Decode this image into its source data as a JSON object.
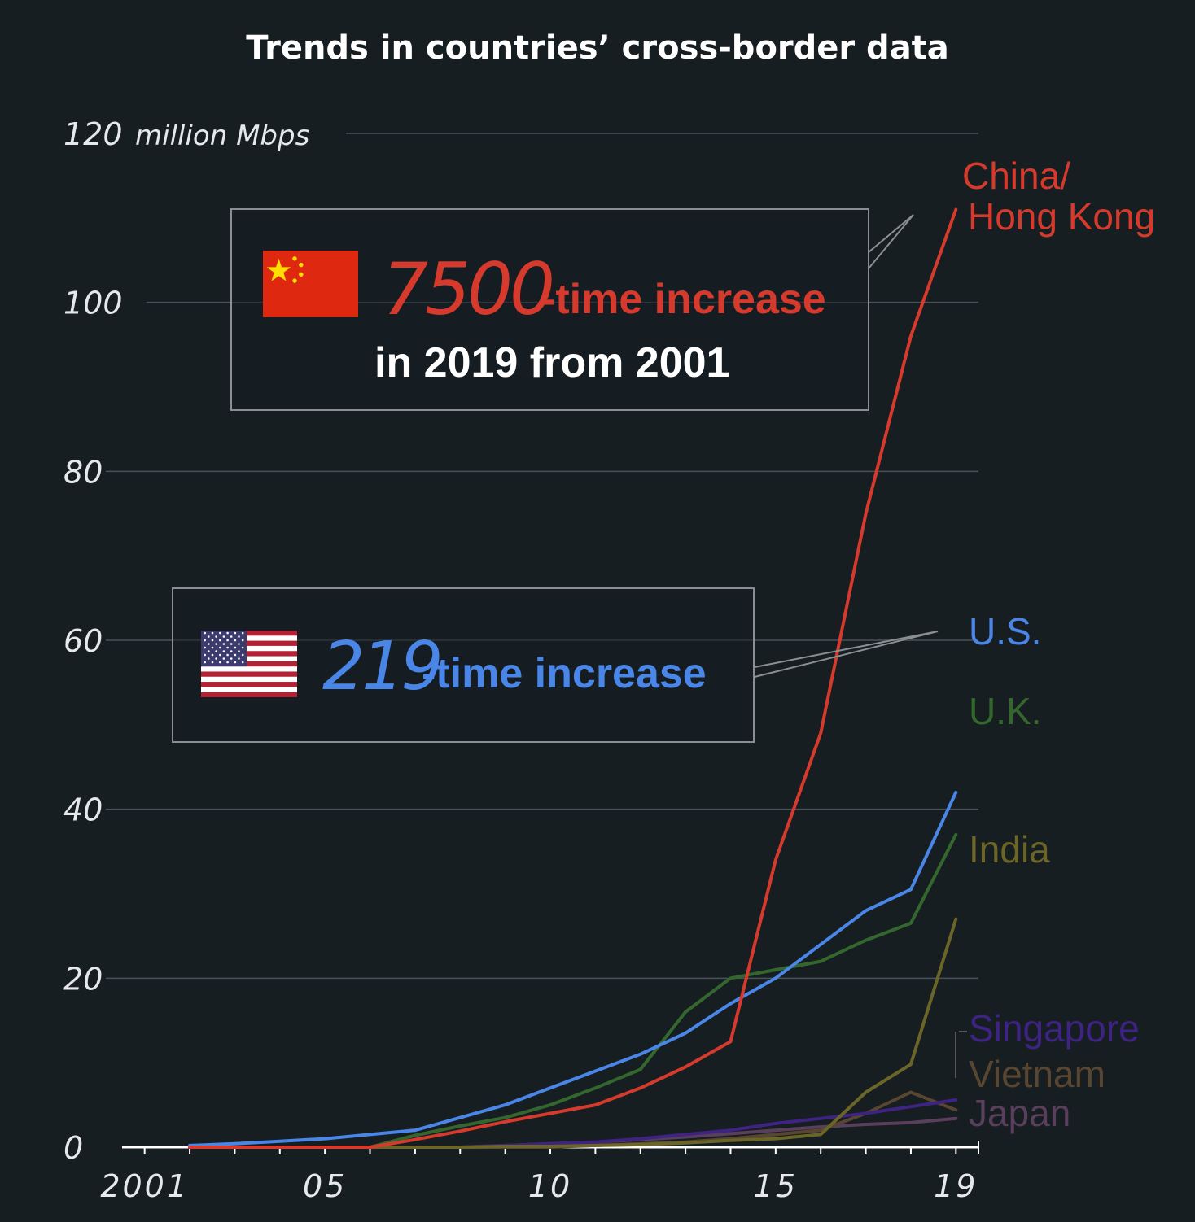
{
  "title": "Trends in countries’ cross-border data",
  "annotations": {
    "china": {
      "number": "7500",
      "suffix": "-time increase",
      "subtitle": "in 2019 from 2001",
      "flag": "china-flag-icon"
    },
    "us": {
      "number": "219",
      "suffix": "-time increase",
      "flag": "us-flag-icon"
    }
  },
  "chart_data": {
    "type": "line",
    "title": "Trends in countries’ cross-border data",
    "ylabel": "million Mbps",
    "yticks": [
      {
        "value": 0,
        "label": "0"
      },
      {
        "value": 20,
        "label": "20"
      },
      {
        "value": 40,
        "label": "40"
      },
      {
        "value": 60,
        "label": "60"
      },
      {
        "value": 80,
        "label": "80"
      },
      {
        "value": 100,
        "label": "100"
      },
      {
        "value": 120,
        "label": "120"
      }
    ],
    "yunit_label": "million Mbps",
    "xticks": [
      {
        "value": 2001,
        "label": "2001"
      },
      {
        "value": 2005,
        "label": "05"
      },
      {
        "value": 2010,
        "label": "10"
      },
      {
        "value": 2015,
        "label": "15"
      },
      {
        "value": 2019,
        "label": "19"
      }
    ],
    "xlim": [
      2000.5,
      2019.5
    ],
    "ylim": [
      0,
      120
    ],
    "grid": true,
    "x": [
      2002,
      2003,
      2004,
      2005,
      2006,
      2007,
      2008,
      2009,
      2010,
      2011,
      2012,
      2013,
      2014,
      2015,
      2016,
      2017,
      2018,
      2019
    ],
    "series": [
      {
        "name": "China/ Hong Kong",
        "label_lines": [
          "China/",
          "Hong Kong"
        ],
        "color": "#d63a2c",
        "values": [
          0,
          0,
          0,
          0,
          0,
          0.9,
          1.9,
          3.0,
          4.0,
          5.0,
          7.0,
          9.5,
          12.5,
          34,
          49,
          75,
          96,
          111
        ]
      },
      {
        "name": "U.S.",
        "label_lines": [
          "U.S."
        ],
        "color": "#4a86e8",
        "values": [
          0.2,
          0.4,
          0.7,
          1.0,
          1.5,
          2.0,
          3.5,
          5.0,
          7.0,
          9.0,
          11.0,
          13.5,
          17.0,
          20.0,
          24.0,
          28.0,
          30.5,
          42
        ]
      },
      {
        "name": "U.K.",
        "label_lines": [
          "U.K."
        ],
        "color": "#33672d",
        "values": [
          0,
          0,
          0,
          0,
          0,
          1.4,
          2.5,
          3.5,
          5.0,
          7.0,
          9.2,
          16,
          20,
          21,
          22,
          24.5,
          26.5,
          37
        ]
      },
      {
        "name": "India",
        "label_lines": [
          "India"
        ],
        "color": "#6b6628",
        "values": [
          0,
          0,
          0,
          0,
          0,
          0,
          0,
          0.1,
          0.1,
          0.2,
          0.3,
          0.5,
          0.8,
          1.0,
          1.5,
          6.5,
          9.8,
          27
        ]
      },
      {
        "name": "Singapore",
        "label_lines": [
          "Singapore"
        ],
        "color": "#3e2382",
        "values": [
          0,
          0,
          0,
          0,
          0,
          0,
          0,
          0.2,
          0.4,
          0.6,
          1.0,
          1.5,
          2.0,
          2.8,
          3.4,
          4.0,
          4.8,
          5.6
        ]
      },
      {
        "name": "Vietnam",
        "label_lines": [
          "Vietnam"
        ],
        "color": "#584630",
        "values": [
          0,
          0,
          0,
          0,
          0,
          0,
          0,
          0,
          0,
          0.2,
          0.4,
          0.6,
          1.0,
          1.5,
          2.0,
          4.0,
          6.5,
          4.4
        ]
      },
      {
        "name": "Japan",
        "label_lines": [
          "Japan"
        ],
        "color": "#5a3f5c",
        "values": [
          0,
          0,
          0,
          0,
          0,
          0,
          0,
          0.2,
          0.4,
          0.6,
          0.9,
          1.2,
          1.6,
          2.0,
          2.4,
          2.7,
          2.9,
          3.4
        ]
      }
    ]
  }
}
